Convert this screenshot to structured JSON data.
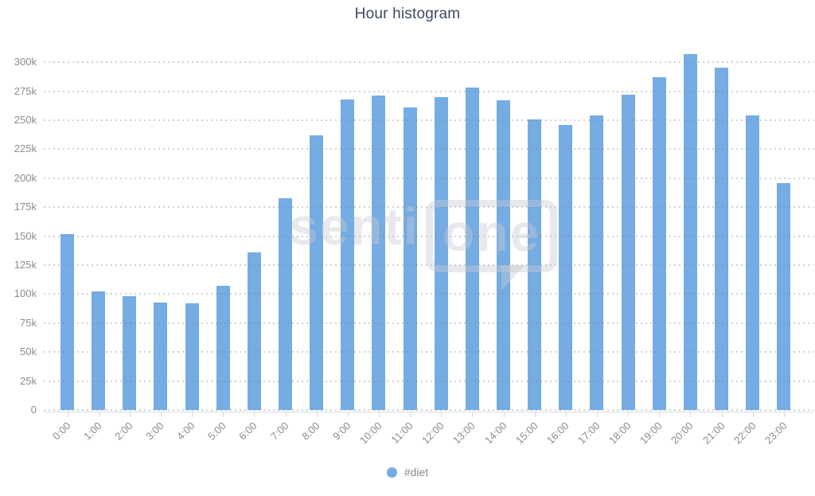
{
  "title": "Hour histogram",
  "legend": {
    "series_label": "#diet",
    "marker_color": "#74ACE3"
  },
  "watermark": {
    "text": "sentione",
    "text_plain": "senti",
    "text_boxed": "one"
  },
  "colors": {
    "bar": "#74ACE3",
    "title_text": "#3A4A62",
    "axis_label": "#8C8C8C",
    "gridline": "#D9D9D9",
    "axis_line": "#D8DDE3",
    "watermark": "#E8EAED"
  },
  "chart_data": {
    "type": "bar",
    "title": "Hour histogram",
    "categories": [
      "0:00",
      "1:00",
      "2:00",
      "3:00",
      "4:00",
      "5:00",
      "6:00",
      "7:00",
      "8:00",
      "9:00",
      "10:00",
      "11:00",
      "12:00",
      "13:00",
      "14:00",
      "15:00",
      "16:00",
      "17:00",
      "18:00",
      "19:00",
      "20:00",
      "21:00",
      "22:00",
      "23:00"
    ],
    "series": [
      {
        "name": "#diet",
        "values": [
          152000,
          102000,
          98000,
          93000,
          92000,
          107000,
          136000,
          183000,
          237000,
          268000,
          271000,
          261000,
          270000,
          278000,
          267000,
          251000,
          246000,
          254000,
          272000,
          287000,
          307000,
          295000,
          254000,
          196000
        ]
      }
    ],
    "xlabel": "",
    "ylabel": "",
    "ylim": [
      0,
      312000
    ],
    "yticks": [
      0,
      25000,
      50000,
      75000,
      100000,
      125000,
      150000,
      175000,
      200000,
      225000,
      250000,
      275000,
      300000
    ],
    "ytick_labels": [
      "0",
      "25k",
      "50k",
      "75k",
      "100k",
      "125k",
      "150k",
      "175k",
      "200k",
      "225k",
      "250k",
      "275k",
      "300k"
    ],
    "grid": "horizontal-dotted",
    "legend_position": "bottom-center",
    "bar_color": "#74ACE3"
  }
}
